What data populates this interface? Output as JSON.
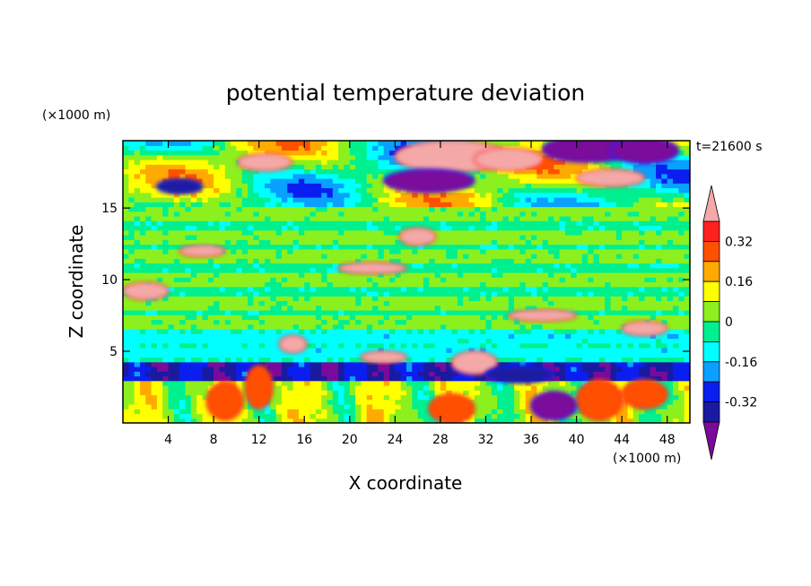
{
  "chart_data": {
    "type": "heatmap",
    "title": "potential temperature deviation",
    "xlabel": "X coordinate",
    "ylabel": "Z coordinate",
    "x_unit": "(×1000 m)",
    "y_unit": "(×1000 m)",
    "time_label": "t=21600 s",
    "xlim": [
      0,
      50
    ],
    "ylim": [
      0,
      19.7
    ],
    "x_ticks": [
      4,
      8,
      12,
      16,
      20,
      24,
      28,
      32,
      36,
      40,
      44,
      48
    ],
    "y_ticks": [
      5,
      10,
      15
    ],
    "colorbar": {
      "levels": [
        -0.4,
        -0.32,
        -0.24,
        -0.16,
        -0.08,
        0,
        0.08,
        0.16,
        0.24,
        0.32,
        0.4
      ],
      "labels": [
        "-0.32",
        "-0.16",
        "0",
        "0.16",
        "0.32"
      ],
      "label_values": [
        -0.32,
        -0.16,
        0,
        0.16,
        0.32
      ],
      "colors": [
        "#7a0a9a",
        "#1a1aa0",
        "#0b1ef0",
        "#0aa0ff",
        "#00ffff",
        "#00f090",
        "#8cf01e",
        "#ffff00",
        "#ffaa00",
        "#ff5000",
        "#ff2020",
        "#f4a8a8"
      ],
      "extend": "both"
    },
    "field_layers": [
      {
        "z": [
          0,
          3
        ],
        "value": 0.12,
        "desc": "warm/mixed near-surface layer"
      },
      {
        "z": [
          3,
          4.4
        ],
        "value": -0.35,
        "desc": "cold band"
      },
      {
        "z": [
          4.4,
          6.5
        ],
        "value": -0.1,
        "desc": "cool cyan band"
      },
      {
        "z": [
          6.5,
          15
        ],
        "value": 0.0,
        "desc": "near-neutral interior"
      },
      {
        "z": [
          15,
          19.7
        ],
        "value": 0.1,
        "desc": "variable upper layer"
      }
    ]
  }
}
